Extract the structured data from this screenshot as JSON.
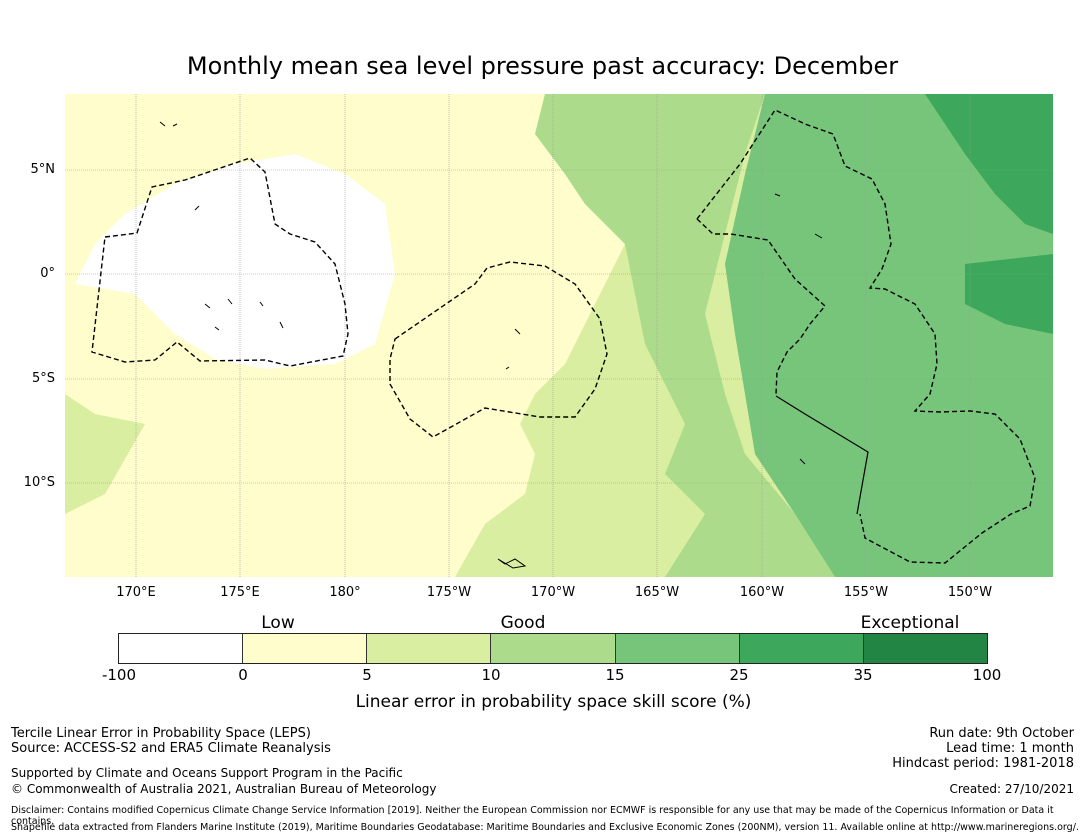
{
  "title": "Monthly mean sea level pressure past accuracy: December",
  "map": {
    "lat_labels": [
      "5°N",
      "0°",
      "5°S",
      "10°S"
    ],
    "lon_labels": [
      "170°E",
      "175°E",
      "180°",
      "175°W",
      "170°W",
      "165°W",
      "160°W",
      "155°W",
      "150°W"
    ]
  },
  "colorbar": {
    "categories": [
      "Low",
      "Good",
      "Exceptional"
    ],
    "ticks": [
      "-100",
      "0",
      "5",
      "10",
      "15",
      "25",
      "35",
      "100"
    ],
    "colors": [
      "#ffffff",
      "#fffdcc",
      "#d9eea0",
      "#acdc8b",
      "#77c57a",
      "#3da75b",
      "#228543"
    ],
    "label": "Linear error in probability space skill score (%)"
  },
  "footer": {
    "left_line1": "Tercile Linear Error in Probability Space (LEPS)",
    "left_line2": "Source: ACCESS-S2 and ERA5 Climate Reanalysis",
    "support_line1": "Supported by Climate and Oceans Support Program in the Pacific",
    "support_line2": "© Commonwealth of Australia 2021, Australian Bureau of Meteorology",
    "run_date": "Run date: 9th October",
    "lead_time": "Lead time: 1 month",
    "hindcast": "Hindcast period: 1981-2018",
    "created": "Created: 27/10/2021",
    "disclaimer": "Disclaimer: Contains modified Copernicus Climate Change Service Information [2019]. Neither the European Commission nor ECMWF is responsible for any use that may be made of the Copernicus Information or Data it contains.",
    "shapefile": "Shapefile data extracted from Flanders Marine Institute (2019), Maritime Boundaries Geodatabase: Maritime Boundaries and Exclusive Economic Zones (200NM), version 11. Available online at http://www.marineregions.org/."
  }
}
